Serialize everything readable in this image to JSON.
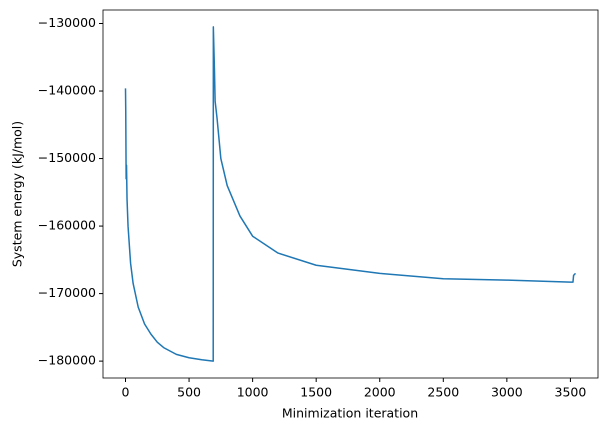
{
  "chart_data": {
    "type": "line",
    "x_label": "Minimization iteration",
    "y_label": "System energy (kJ/mol)",
    "x": [
      0,
      2,
      5,
      8,
      12,
      20,
      40,
      60,
      100,
      150,
      200,
      250,
      300,
      400,
      500,
      600,
      690,
      691,
      700,
      705,
      720,
      750,
      800,
      900,
      1000,
      1200,
      1500,
      2000,
      2500,
      3000,
      3500,
      3520,
      3525,
      3540
    ],
    "series": [
      {
        "color": "#1f77b4",
        "values": [
          -139600,
          -143000,
          -153000,
          -151000,
          -156000,
          -160000,
          -165500,
          -168500,
          -172000,
          -174500,
          -176000,
          -177200,
          -178000,
          -179000,
          -179500,
          -179800,
          -180000,
          -130500,
          -137000,
          -141500,
          -144000,
          -150000,
          -154000,
          -158500,
          -161500,
          -164000,
          -165800,
          -167000,
          -167800,
          -168000,
          -168300,
          -168300,
          -167300,
          -167000
        ]
      }
    ],
    "xlim": [
      -177,
      3717
    ],
    "ylim": [
      -182500,
      -128000
    ],
    "xticks": [
      0,
      500,
      1000,
      1500,
      2000,
      2500,
      3000,
      3500
    ],
    "yticks": [
      {
        "value": -180000,
        "label": "−180000"
      },
      {
        "value": -170000,
        "label": "−170000"
      },
      {
        "value": -160000,
        "label": "−160000"
      },
      {
        "value": -150000,
        "label": "−150000"
      },
      {
        "value": -140000,
        "label": "−140000"
      },
      {
        "value": -130000,
        "label": "−130000"
      }
    ]
  }
}
